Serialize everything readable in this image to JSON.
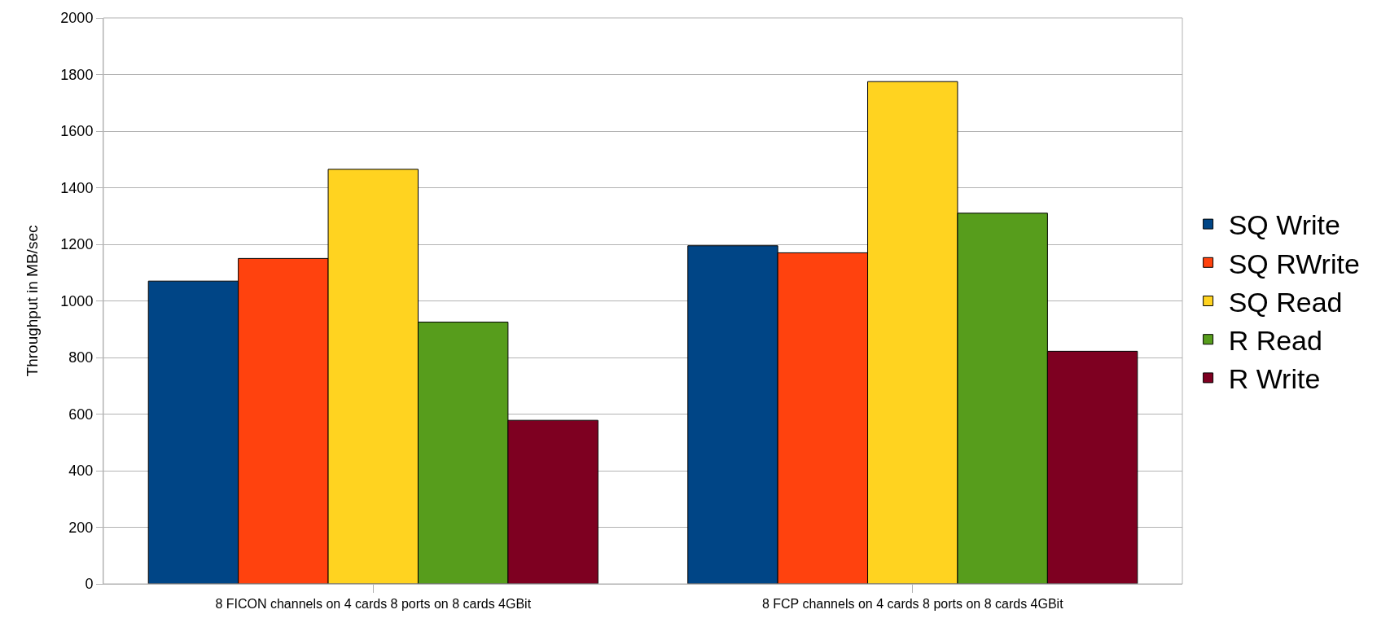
{
  "chart_data": {
    "type": "bar",
    "ylabel": "Throughput in MB/sec",
    "categories": [
      "8 FICON channels on 4 cards 8 ports on 8 cards 4GBit",
      "8 FCP channels on 4 cards 8 ports on 8 cards 4GBit"
    ],
    "series": [
      {
        "name": "SQ Write",
        "color": "#004586",
        "values": [
          1070,
          1195
        ]
      },
      {
        "name": "SQ RWrite",
        "color": "#ff420e",
        "values": [
          1150,
          1170
        ]
      },
      {
        "name": "SQ Read",
        "color": "#ffd320",
        "values": [
          1465,
          1775
        ]
      },
      {
        "name": "R Read",
        "color": "#579d1c",
        "values": [
          925,
          1310
        ]
      },
      {
        "name": "R Write",
        "color": "#7e0021",
        "values": [
          578,
          822
        ]
      }
    ],
    "ylim": [
      0,
      2000
    ],
    "yticks": [
      0,
      200,
      400,
      600,
      800,
      1000,
      1200,
      1400,
      1600,
      1800,
      2000
    ],
    "grid": "y",
    "legend": "right"
  }
}
